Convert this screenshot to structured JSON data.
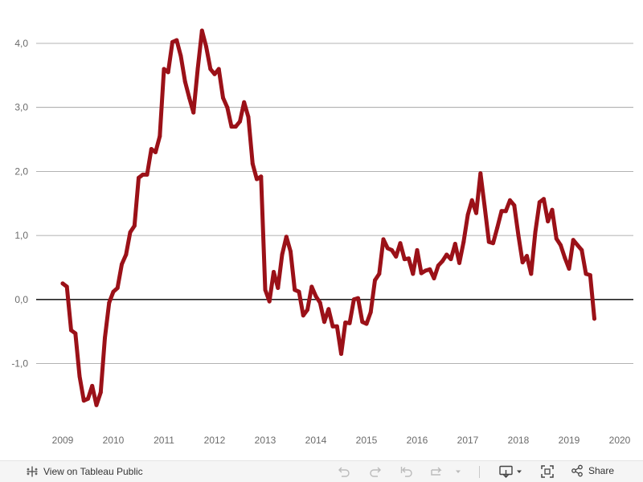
{
  "chart_data": {
    "type": "line",
    "title": "",
    "xlabel": "",
    "ylabel": "",
    "ylim": [
      -1.9,
      4.5
    ],
    "xlim": [
      2009.0,
      2020.0
    ],
    "grid": true,
    "y_ticks": [
      {
        "value": 4,
        "label": "4,0"
      },
      {
        "value": 3,
        "label": "3,0"
      },
      {
        "value": 2,
        "label": "2,0"
      },
      {
        "value": 1,
        "label": "1,0"
      },
      {
        "value": 0,
        "label": "0,0"
      },
      {
        "value": -1,
        "label": "-1,0"
      }
    ],
    "x_ticks": [
      {
        "value": 2009.0,
        "label": "2009"
      },
      {
        "value": 2010.0,
        "label": "2010"
      },
      {
        "value": 2011.0,
        "label": "2011"
      },
      {
        "value": 2012.0,
        "label": "2012"
      },
      {
        "value": 2013.0,
        "label": "2013"
      },
      {
        "value": 2014.0,
        "label": "2014"
      },
      {
        "value": 2015.0,
        "label": "2015"
      },
      {
        "value": 2016.0,
        "label": "2016"
      },
      {
        "value": 2017.0,
        "label": "2017"
      },
      {
        "value": 2018.0,
        "label": "2018"
      },
      {
        "value": 2019.0,
        "label": "2019"
      },
      {
        "value": 2020.0,
        "label": "2020"
      }
    ],
    "series": [
      {
        "name": "series",
        "color": "#9b1118",
        "x": [
          2009.0,
          2009.083,
          2009.167,
          2009.25,
          2009.333,
          2009.417,
          2009.5,
          2009.583,
          2009.667,
          2009.75,
          2009.833,
          2009.917,
          2010.0,
          2010.083,
          2010.167,
          2010.25,
          2010.333,
          2010.417,
          2010.5,
          2010.583,
          2010.667,
          2010.75,
          2010.833,
          2010.917,
          2011.0,
          2011.083,
          2011.167,
          2011.25,
          2011.333,
          2011.417,
          2011.5,
          2011.583,
          2011.667,
          2011.75,
          2011.833,
          2011.917,
          2012.0,
          2012.083,
          2012.167,
          2012.25,
          2012.333,
          2012.417,
          2012.5,
          2012.583,
          2012.667,
          2012.75,
          2012.833,
          2012.917,
          2013.0,
          2013.083,
          2013.167,
          2013.25,
          2013.333,
          2013.417,
          2013.5,
          2013.583,
          2013.667,
          2013.75,
          2013.833,
          2013.917,
          2014.0,
          2014.083,
          2014.167,
          2014.25,
          2014.333,
          2014.417,
          2014.5,
          2014.583,
          2014.667,
          2014.75,
          2014.833,
          2014.917,
          2015.0,
          2015.083,
          2015.167,
          2015.25,
          2015.333,
          2015.417,
          2015.5,
          2015.583,
          2015.667,
          2015.75,
          2015.833,
          2015.917,
          2016.0,
          2016.083,
          2016.167,
          2016.25,
          2016.333,
          2016.417,
          2016.5,
          2016.583,
          2016.667,
          2016.75,
          2016.833,
          2016.917,
          2017.0,
          2017.083,
          2017.167,
          2017.25,
          2017.333,
          2017.417,
          2017.5,
          2017.583,
          2017.667,
          2017.75,
          2017.833,
          2017.917,
          2018.0,
          2018.083,
          2018.167,
          2018.25,
          2018.333,
          2018.417,
          2018.5,
          2018.583,
          2018.667,
          2018.75,
          2018.833,
          2018.917,
          2019.0,
          2019.083,
          2019.167,
          2019.25,
          2019.333,
          2019.417,
          2019.5
        ],
        "y": [
          0.25,
          0.2,
          -0.48,
          -0.53,
          -1.2,
          -1.58,
          -1.55,
          -1.35,
          -1.65,
          -1.45,
          -0.6,
          -0.05,
          0.12,
          0.18,
          0.55,
          0.7,
          1.05,
          1.15,
          1.9,
          1.95,
          1.95,
          2.35,
          2.3,
          2.55,
          3.6,
          3.55,
          4.02,
          4.05,
          3.8,
          3.4,
          3.15,
          2.92,
          3.6,
          4.2,
          3.95,
          3.6,
          3.52,
          3.6,
          3.15,
          3.0,
          2.7,
          2.7,
          2.78,
          3.08,
          2.85,
          2.12,
          1.88,
          1.92,
          0.15,
          -0.03,
          0.43,
          0.18,
          0.7,
          0.98,
          0.75,
          0.15,
          0.12,
          -0.25,
          -0.16,
          0.2,
          0.05,
          -0.05,
          -0.35,
          -0.15,
          -0.42,
          -0.42,
          -0.85,
          -0.36,
          -0.37,
          0.0,
          0.02,
          -0.35,
          -0.38,
          -0.2,
          0.3,
          0.4,
          0.94,
          0.8,
          0.77,
          0.67,
          0.88,
          0.63,
          0.64,
          0.4,
          0.77,
          0.41,
          0.45,
          0.47,
          0.33,
          0.53,
          0.6,
          0.7,
          0.63,
          0.87,
          0.57,
          0.9,
          1.32,
          1.55,
          1.35,
          1.97,
          1.45,
          0.9,
          0.88,
          1.12,
          1.38,
          1.38,
          1.55,
          1.47,
          1.0,
          0.58,
          0.68,
          0.4,
          1.05,
          1.52,
          1.57,
          1.22,
          1.4,
          0.95,
          0.85,
          0.65,
          0.48,
          0.93,
          0.85,
          0.77,
          0.4,
          0.38,
          -0.3
        ]
      }
    ]
  },
  "toolbar": {
    "view_label": "View on Tableau Public",
    "share_label": "Share",
    "icons": {
      "tableau": "tableau-logo-icon",
      "undo": "undo-icon",
      "redo": "redo-icon",
      "revert": "revert-icon",
      "refresh": "refresh-icon",
      "download": "download-icon",
      "fullscreen": "fullscreen-icon",
      "share": "share-icon"
    }
  }
}
